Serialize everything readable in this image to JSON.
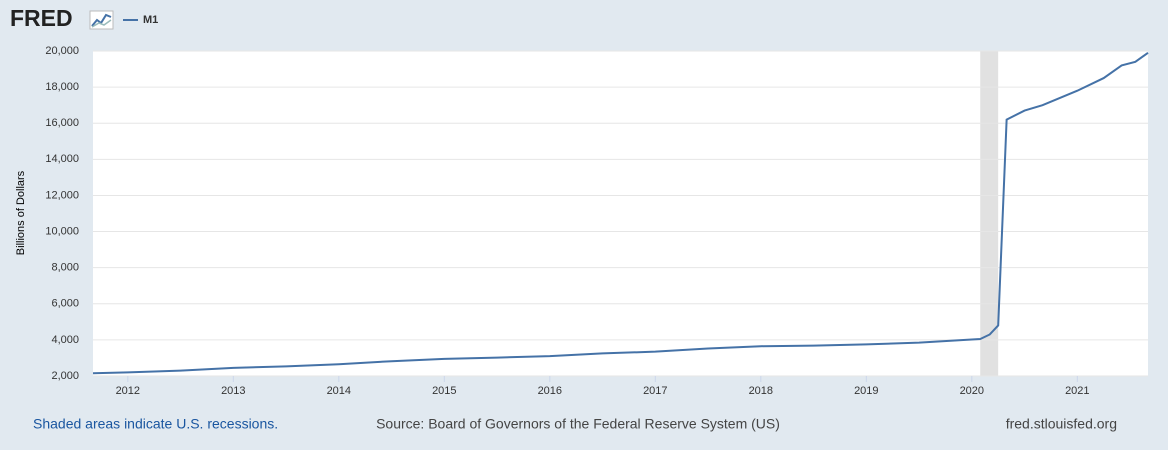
{
  "logo": "FRED",
  "chart_data": {
    "type": "line",
    "y_label": "Billions of Dollars",
    "x": [
      2011.67,
      2012.0,
      2012.5,
      2013.0,
      2013.5,
      2014.0,
      2014.5,
      2015.0,
      2015.5,
      2016.0,
      2016.5,
      2017.0,
      2017.5,
      2018.0,
      2018.5,
      2019.0,
      2019.5,
      2020.0,
      2020.08,
      2020.17,
      2020.25,
      2020.33,
      2020.5,
      2020.67,
      2021.0,
      2021.25,
      2021.42,
      2021.55,
      2021.67
    ],
    "series": [
      {
        "name": "M1",
        "color": "#4572a7",
        "values": [
          2150,
          2200,
          2300,
          2450,
          2530,
          2650,
          2820,
          2950,
          3020,
          3100,
          3250,
          3350,
          3520,
          3650,
          3680,
          3750,
          3850,
          4020,
          4050,
          4300,
          4800,
          16200,
          16700,
          17000,
          17800,
          18500,
          19200,
          19400,
          19900
        ]
      }
    ],
    "xlim": [
      2011.67,
      2021.67
    ],
    "xticks": [
      2012,
      2013,
      2014,
      2015,
      2016,
      2017,
      2018,
      2019,
      2020,
      2021
    ],
    "ylim": [
      2000,
      20000
    ],
    "yticks": [
      {
        "value": 2000,
        "label": "2,000"
      },
      {
        "value": 4000,
        "label": "4,000"
      },
      {
        "value": 6000,
        "label": "6,000"
      },
      {
        "value": 8000,
        "label": "8,000"
      },
      {
        "value": 10000,
        "label": "10,000"
      },
      {
        "value": 12000,
        "label": "12,000"
      },
      {
        "value": 14000,
        "label": "14,000"
      },
      {
        "value": 16000,
        "label": "16,000"
      },
      {
        "value": 18000,
        "label": "18,000"
      },
      {
        "value": 20000,
        "label": "20,000"
      }
    ],
    "grid": true,
    "recessions": [
      [
        2020.08,
        2020.25
      ]
    ]
  },
  "footer": {
    "note": "Shaded areas indicate U.S. recessions.",
    "source": "Source: Board of Governors of the Federal Reserve System (US)",
    "site": "fred.stlouisfed.org"
  }
}
